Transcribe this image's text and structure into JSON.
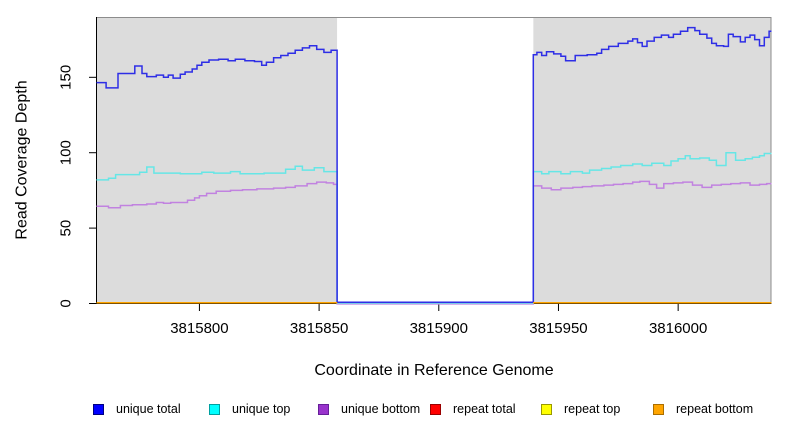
{
  "chart_data": {
    "type": "line",
    "title": "",
    "xlabel": "Coordinate in Reference Genome",
    "ylabel": "Read Coverage Depth",
    "xlim": [
      3815757,
      3816039
    ],
    "ylim": [
      0,
      190
    ],
    "x_ticks": [
      3815800,
      3815850,
      3815900,
      3815950,
      3816000
    ],
    "x_tick_labels": [
      "3815800",
      "3815850",
      "3815900",
      "3815950",
      "3816000"
    ],
    "y_ticks": [
      0,
      50,
      100,
      150
    ],
    "y_tick_labels": [
      "0",
      "50",
      "100",
      "150"
    ],
    "grid": false,
    "legend_position": "bottom",
    "panel_color": "#DCDCDC",
    "panel_border_color": "#8C8C8C",
    "coverage_regions": [
      [
        3815757,
        3815857.5
      ],
      [
        3815939.5,
        3816039
      ]
    ],
    "gap_region": [
      3815857.5,
      3815939.5
    ],
    "step_interpolation": true,
    "series": [
      {
        "name": "unique bottom",
        "color": "#C182E0",
        "gap_value": 0,
        "points_left": [
          [
            3815757,
            64.5
          ],
          [
            3815762,
            63.5
          ],
          [
            3815767,
            65
          ],
          [
            3815772,
            65.5
          ],
          [
            3815778,
            66
          ],
          [
            3815782,
            67
          ],
          [
            3815785,
            66.5
          ],
          [
            3815788,
            67
          ],
          [
            3815795,
            68.5
          ],
          [
            3815798,
            70
          ],
          [
            3815800,
            71.5
          ],
          [
            3815803,
            73
          ],
          [
            3815807,
            74.5
          ],
          [
            3815813,
            75
          ],
          [
            3815818,
            75.5
          ],
          [
            3815824,
            76
          ],
          [
            3815831,
            76.5
          ],
          [
            3815836,
            77
          ],
          [
            3815840,
            78
          ],
          [
            3815845,
            79.5
          ],
          [
            3815849,
            80.5
          ],
          [
            3815853,
            80
          ],
          [
            3815856,
            79
          ]
        ],
        "points_right": [
          [
            3815939.5,
            78
          ],
          [
            3815943,
            76.5
          ],
          [
            3815947,
            75.5
          ],
          [
            3815951,
            76.5
          ],
          [
            3815956,
            77
          ],
          [
            3815960,
            77.5
          ],
          [
            3815964,
            78
          ],
          [
            3815969,
            78.5
          ],
          [
            3815973,
            79
          ],
          [
            3815977,
            79.5
          ],
          [
            3815981,
            80.5
          ],
          [
            3815984,
            81
          ],
          [
            3815988,
            79
          ],
          [
            3815991,
            76.5
          ],
          [
            3815994,
            79.5
          ],
          [
            3815998,
            80
          ],
          [
            3816002,
            80.5
          ],
          [
            3816006,
            78.5
          ],
          [
            3816010,
            77
          ],
          [
            3816014,
            78.5
          ],
          [
            3816018,
            79
          ],
          [
            3816022,
            79.5
          ],
          [
            3816026,
            80
          ],
          [
            3816030,
            78.5
          ],
          [
            3816034,
            79
          ],
          [
            3816037,
            79.5
          ]
        ]
      },
      {
        "name": "unique top",
        "color": "#66E6E6",
        "gap_value": 0,
        "points_left": [
          [
            3815757,
            82
          ],
          [
            3815762,
            83
          ],
          [
            3815765,
            85.5
          ],
          [
            3815775,
            87
          ],
          [
            3815778,
            90.5
          ],
          [
            3815781,
            86.5
          ],
          [
            3815792,
            86
          ],
          [
            3815801,
            87
          ],
          [
            3815806,
            86.5
          ],
          [
            3815813,
            87.5
          ],
          [
            3815817,
            86
          ],
          [
            3815827,
            86.5
          ],
          [
            3815836,
            89
          ],
          [
            3815840,
            91
          ],
          [
            3815843,
            88.5
          ],
          [
            3815848,
            90
          ],
          [
            3815852,
            87.5
          ]
        ],
        "points_right": [
          [
            3815939.5,
            87.5
          ],
          [
            3815943,
            86
          ],
          [
            3815946,
            87.5
          ],
          [
            3815951,
            86
          ],
          [
            3815955,
            87.5
          ],
          [
            3815960,
            86.5
          ],
          [
            3815963,
            88.5
          ],
          [
            3815968,
            89.5
          ],
          [
            3815972,
            90.5
          ],
          [
            3815976,
            91.5
          ],
          [
            3815981,
            92.5
          ],
          [
            3815985,
            91.5
          ],
          [
            3815989,
            93
          ],
          [
            3815994,
            91.5
          ],
          [
            3815997,
            94.5
          ],
          [
            3816000,
            96
          ],
          [
            3816003,
            98
          ],
          [
            3816005,
            96
          ],
          [
            3816009,
            96.5
          ],
          [
            3816013,
            95
          ],
          [
            3816016,
            91.5
          ],
          [
            3816020,
            100
          ],
          [
            3816024,
            95
          ],
          [
            3816028,
            96
          ],
          [
            3816031,
            97
          ],
          [
            3816034,
            98
          ],
          [
            3816036,
            99.5
          ]
        ]
      },
      {
        "name": "unique total",
        "color": "#2E2EE6",
        "gap_value": 0,
        "points_left": [
          [
            3815757,
            146.5
          ],
          [
            3815761,
            143
          ],
          [
            3815766,
            152.5
          ],
          [
            3815773,
            157.5
          ],
          [
            3815776,
            152.5
          ],
          [
            3815778,
            150.5
          ],
          [
            3815782,
            151.5
          ],
          [
            3815785,
            150
          ],
          [
            3815787,
            151.5
          ],
          [
            3815789,
            149.5
          ],
          [
            3815792,
            152
          ],
          [
            3815794,
            153.5
          ],
          [
            3815797,
            155.5
          ],
          [
            3815799,
            158
          ],
          [
            3815801,
            160
          ],
          [
            3815804,
            161.5
          ],
          [
            3815808,
            162
          ],
          [
            3815812,
            161
          ],
          [
            3815815,
            162
          ],
          [
            3815819,
            161
          ],
          [
            3815823,
            160.5
          ],
          [
            3815826,
            158
          ],
          [
            3815828,
            160
          ],
          [
            3815831,
            163
          ],
          [
            3815834,
            164.5
          ],
          [
            3815837,
            166
          ],
          [
            3815840,
            168
          ],
          [
            3815843,
            169.5
          ],
          [
            3815846,
            171
          ],
          [
            3815849,
            168.5
          ],
          [
            3815852,
            166.5
          ],
          [
            3815855,
            168
          ]
        ],
        "points_right": [
          [
            3815939.5,
            165
          ],
          [
            3815941,
            166.5
          ],
          [
            3815943,
            164.5
          ],
          [
            3815945,
            167
          ],
          [
            3815948,
            165.5
          ],
          [
            3815951,
            164
          ],
          [
            3815953,
            161
          ],
          [
            3815957,
            164.5
          ],
          [
            3815962,
            165
          ],
          [
            3815966,
            166
          ],
          [
            3815968,
            168.5
          ],
          [
            3815971,
            170.5
          ],
          [
            3815975,
            172.5
          ],
          [
            3815979,
            174
          ],
          [
            3815981,
            175.5
          ],
          [
            3815983,
            173
          ],
          [
            3815985,
            170.5
          ],
          [
            3815987,
            174
          ],
          [
            3815990,
            176.5
          ],
          [
            3815993,
            178
          ],
          [
            3815996,
            176.5
          ],
          [
            3815998,
            178.5
          ],
          [
            3816001,
            180.5
          ],
          [
            3816004,
            183
          ],
          [
            3816007,
            181
          ],
          [
            3816009,
            178.5
          ],
          [
            3816012,
            176
          ],
          [
            3816014,
            172.5
          ],
          [
            3816016,
            171
          ],
          [
            3816019,
            170.5
          ],
          [
            3816021,
            178.5
          ],
          [
            3816023,
            177
          ],
          [
            3816026,
            173.5
          ],
          [
            3816028,
            176.5
          ],
          [
            3816030,
            178
          ],
          [
            3816032,
            175
          ],
          [
            3816034,
            171
          ],
          [
            3816036,
            176.5
          ],
          [
            3816038,
            180.5
          ]
        ]
      },
      {
        "name": "repeat total",
        "color": "#FF0000",
        "gap_value": null,
        "points_left": [
          [
            3815757,
            0
          ]
        ],
        "points_right": [
          [
            3815939.5,
            0
          ]
        ]
      },
      {
        "name": "repeat top",
        "color": "#FFFF00",
        "gap_value": null,
        "points_left": [
          [
            3815757,
            0
          ]
        ],
        "points_right": [
          [
            3815939.5,
            0
          ]
        ]
      },
      {
        "name": "repeat bottom",
        "color": "#FFA500",
        "gap_value": null,
        "points_left": [
          [
            3815757,
            0
          ]
        ],
        "points_right": [
          [
            3815939.5,
            0
          ]
        ]
      }
    ],
    "legend": [
      {
        "label": "unique total",
        "fill": "#0000FF",
        "border": "#000080"
      },
      {
        "label": "unique top",
        "fill": "#00FFFF",
        "border": "#00A0A0"
      },
      {
        "label": "unique bottom",
        "fill": "#9933CC",
        "border": "#661F99"
      },
      {
        "label": "repeat total",
        "fill": "#FF0000",
        "border": "#990000"
      },
      {
        "label": "repeat top",
        "fill": "#FFFF00",
        "border": "#999900"
      },
      {
        "label": "repeat bottom",
        "fill": "#FFA500",
        "border": "#AA6E00"
      }
    ]
  }
}
